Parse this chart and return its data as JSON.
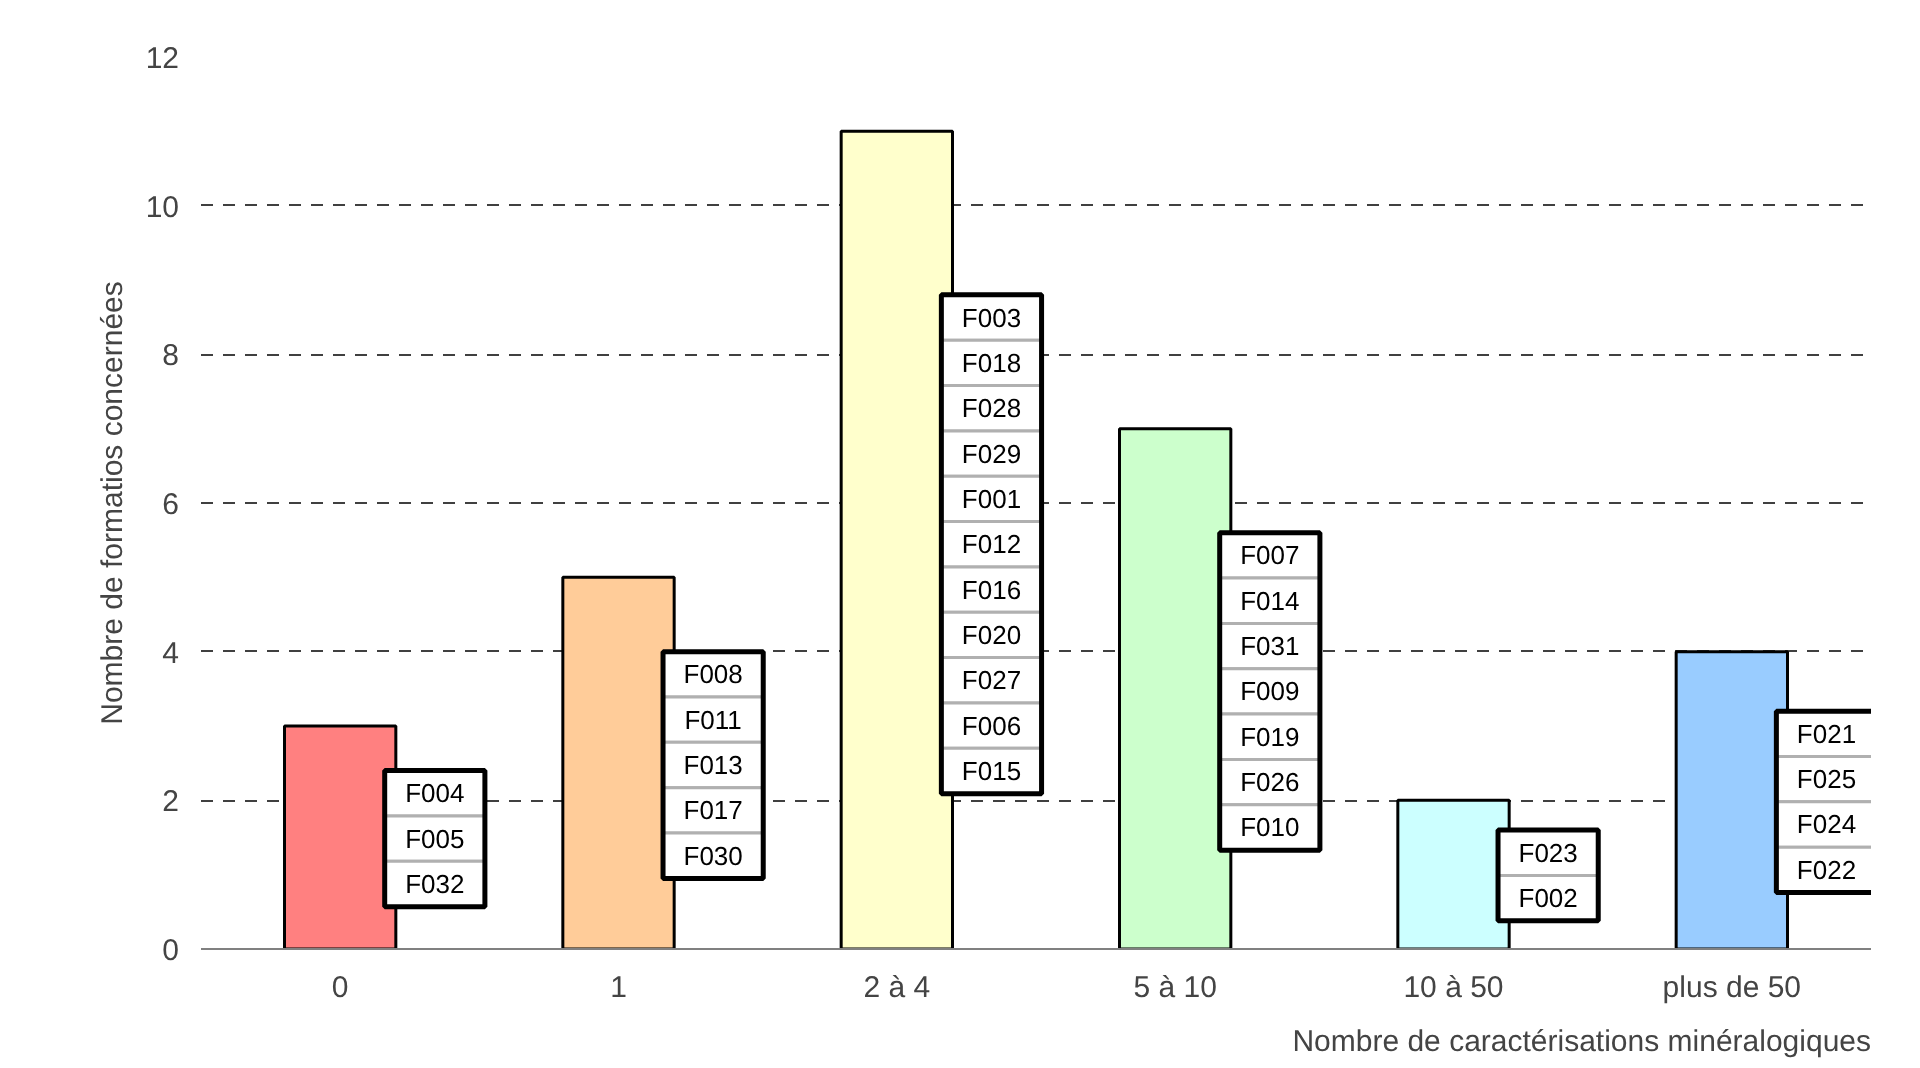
{
  "chart_data": {
    "type": "bar",
    "xlabel": "Nombre de caractérisations minéralogiques",
    "ylabel": "Nombre de formatios concernées",
    "categories": [
      "0",
      "1",
      "2 à 4",
      "5 à 10",
      "10 à 50",
      "plus de 50"
    ],
    "values": [
      3,
      5,
      11,
      7,
      2,
      4
    ],
    "colors": [
      "#ff8080",
      "#ffcc99",
      "#ffffcc",
      "#ccffcc",
      "#ccffff",
      "#99ccff"
    ],
    "ylim": [
      0,
      12
    ],
    "yticks": [
      0,
      2,
      4,
      6,
      8,
      10,
      12
    ],
    "grid": "y",
    "annotations": [
      "F004\nF005\nF032",
      "F008\nF011\nF013\nF017\nF030",
      "F003\nF018\nF028\nF029\nF001\nF012\nF016\nF020\nF027\nF006\nF015",
      "F007\nF014\nF031\nF009\nF019\nF026\nF010",
      "F023\nF002",
      "F021\nF025\nF024\nF022"
    ]
  }
}
